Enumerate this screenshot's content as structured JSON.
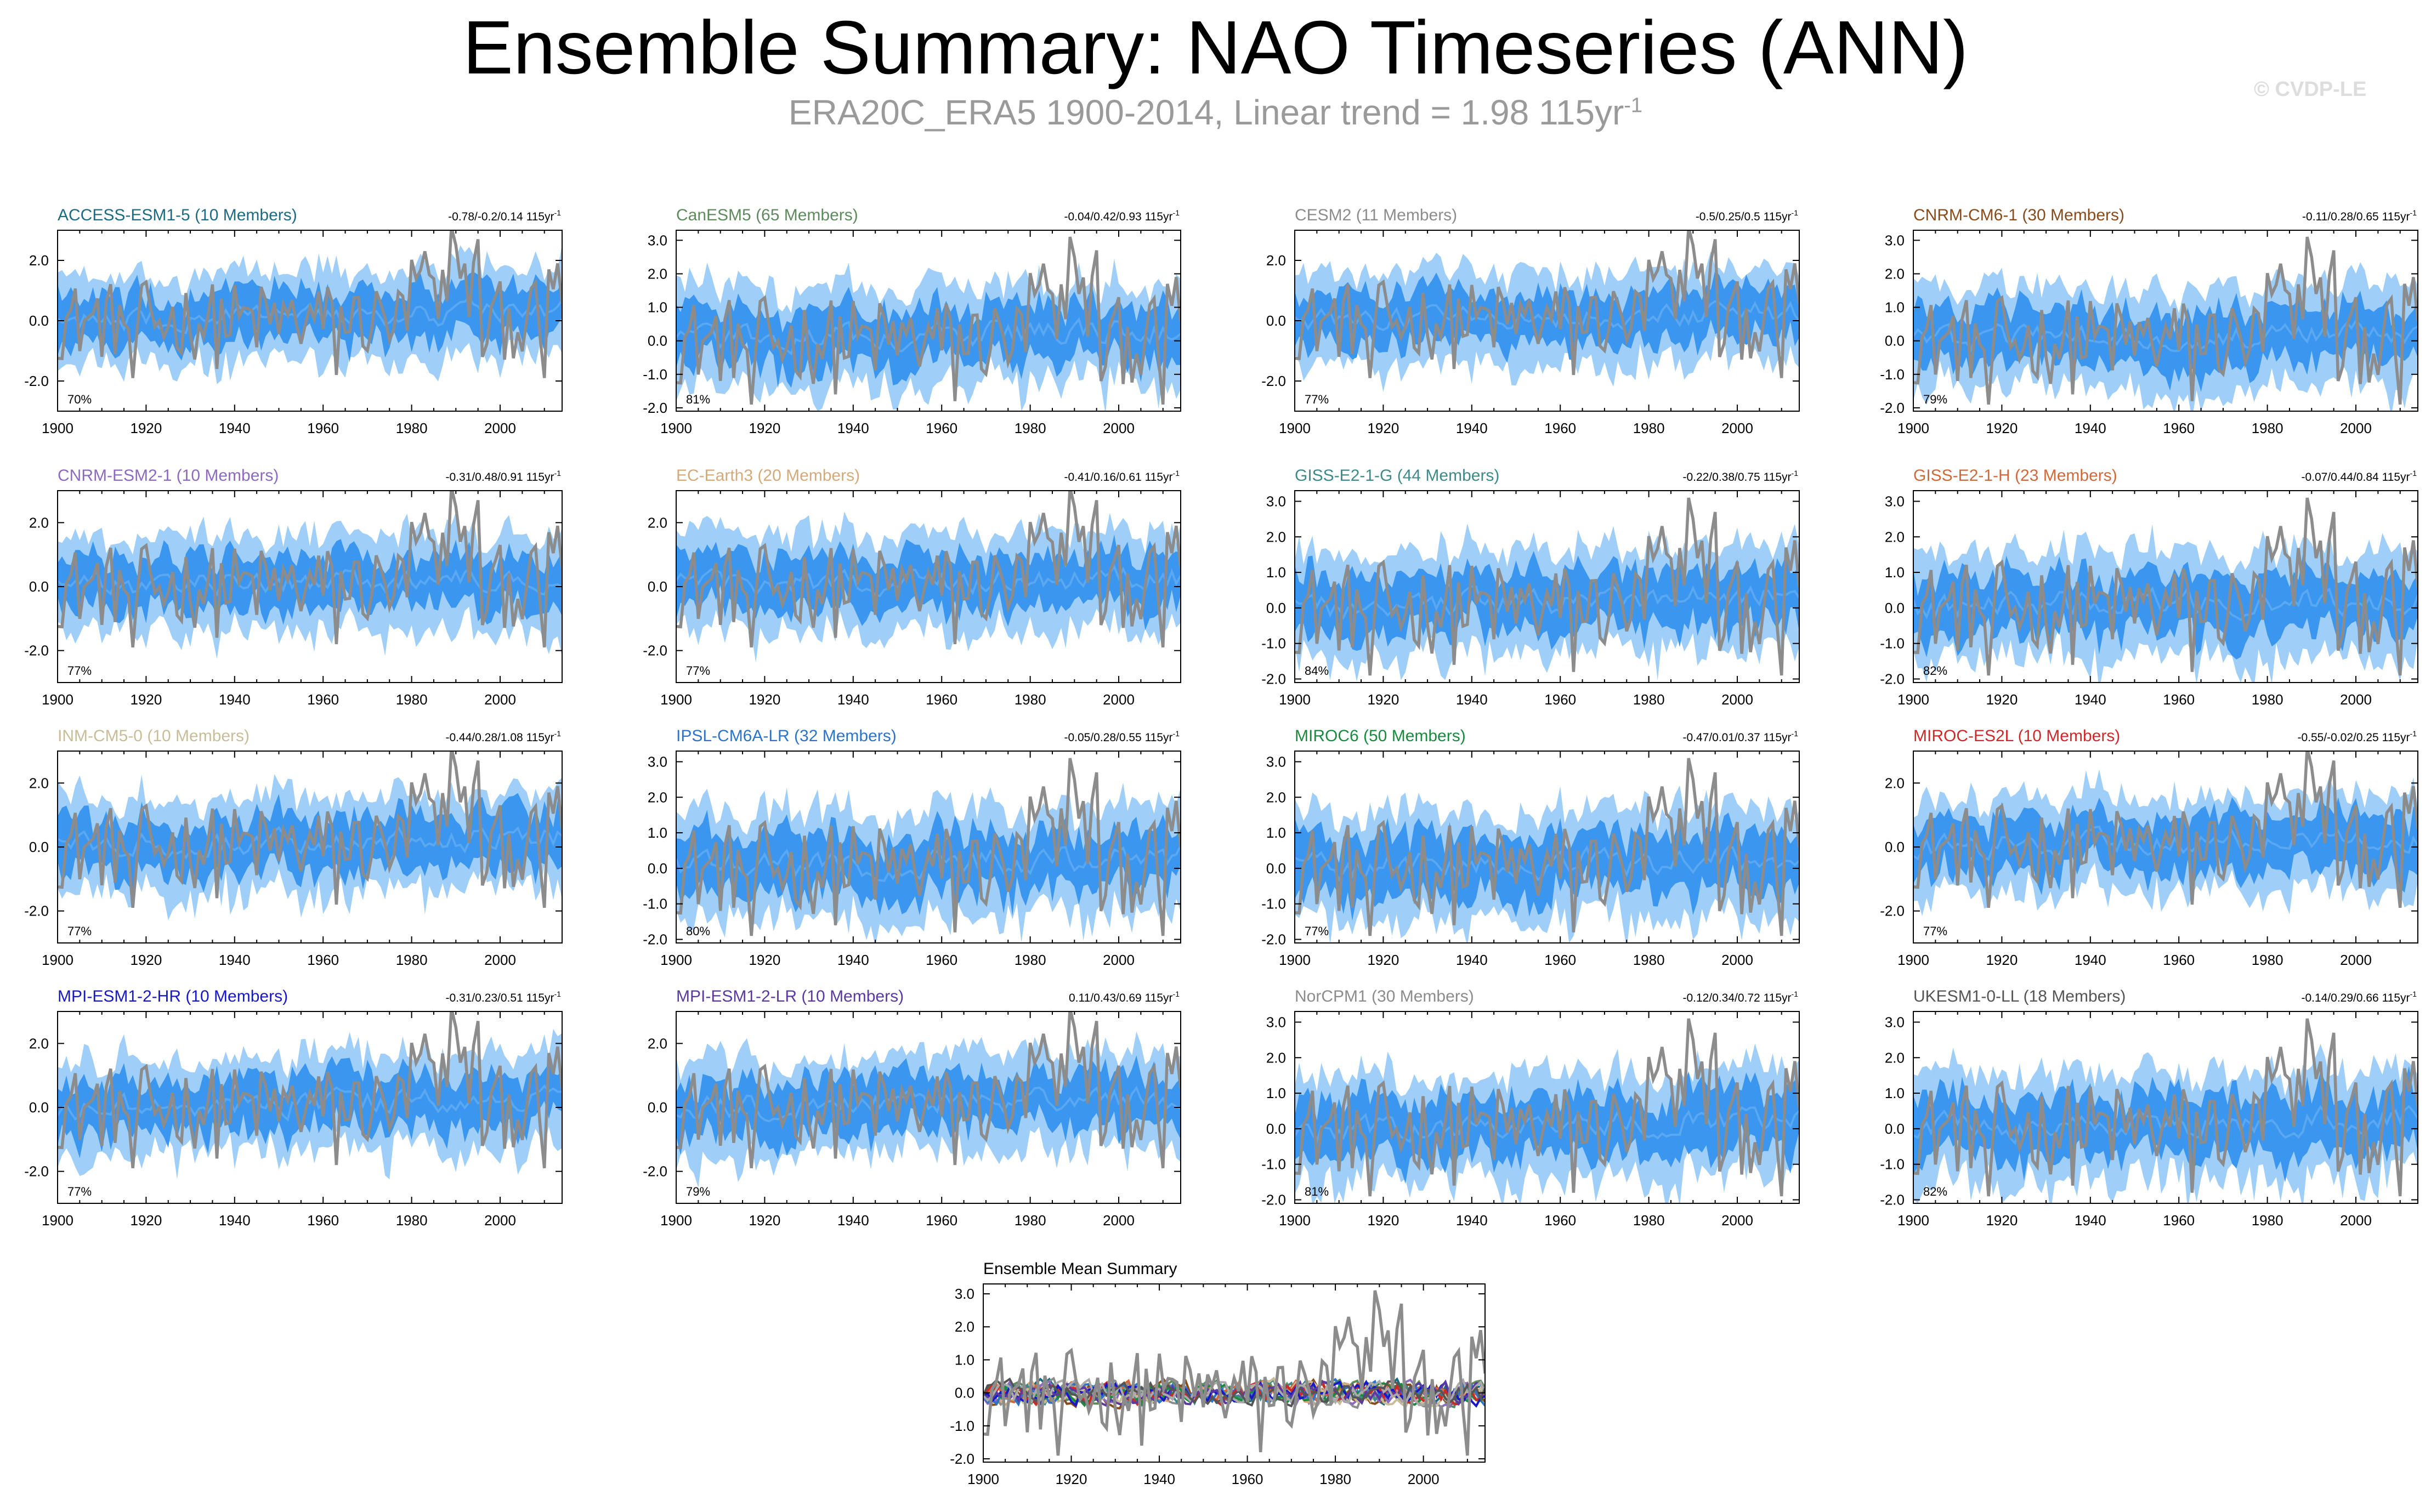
{
  "header": {
    "title": "Ensemble Summary: NAO Timeseries (ANN)",
    "subtitle_main": "ERA20C_ERA5 1900-2014, Linear trend = 1.98 115yr",
    "subtitle_sup": "-1",
    "copyright": "© CVDP-LE"
  },
  "colors": {
    "outer_band": "#9fcff8",
    "inner_band": "#3a96ee",
    "ensemble_mean": "#5aa8f2",
    "observations": "#8c8c8c"
  },
  "chart_data": [
    {
      "type": "area",
      "title": "ACCESS-ESM1-5 (10 Members)",
      "title_color": "#1c6b80",
      "trend_label": "-0.78/-0.2/0.14 115yr",
      "trend_sup": "-1",
      "pct_label": "70%",
      "x": [
        1900,
        2014
      ],
      "ylim": [
        -3,
        3
      ],
      "yticks": [
        2.0,
        0.0,
        -2.0
      ],
      "xticks": [
        1900,
        1920,
        1940,
        1960,
        1980,
        2000
      ],
      "grid": false
    },
    {
      "type": "area",
      "title": "CanESM5 (65 Members)",
      "title_color": "#5e8a5e",
      "trend_label": "-0.04/0.42/0.93 115yr",
      "trend_sup": "-1",
      "pct_label": "81%",
      "x": [
        1900,
        2014
      ],
      "ylim": [
        -2.1,
        3.3
      ],
      "yticks": [
        3.0,
        2.0,
        1.0,
        0.0,
        -1.0,
        -2.0
      ],
      "xticks": [
        1900,
        1920,
        1940,
        1960,
        1980,
        2000
      ],
      "grid": false
    },
    {
      "type": "area",
      "title": "CESM2 (11 Members)",
      "title_color": "#8c8c8c",
      "trend_label": "-0.5/0.25/0.5 115yr",
      "trend_sup": "-1",
      "pct_label": "77%",
      "x": [
        1900,
        2014
      ],
      "ylim": [
        -3,
        3
      ],
      "yticks": [
        2.0,
        0.0,
        -2.0
      ],
      "xticks": [
        1900,
        1920,
        1940,
        1960,
        1980,
        2000
      ],
      "grid": false
    },
    {
      "type": "area",
      "title": "CNRM-CM6-1 (30 Members)",
      "title_color": "#8a4b1a",
      "trend_label": "-0.11/0.28/0.65 115yr",
      "trend_sup": "-1",
      "pct_label": "79%",
      "x": [
        1900,
        2014
      ],
      "ylim": [
        -2.1,
        3.3
      ],
      "yticks": [
        3.0,
        2.0,
        1.0,
        0.0,
        -1.0,
        -2.0
      ],
      "xticks": [
        1900,
        1920,
        1940,
        1960,
        1980,
        2000
      ],
      "grid": false
    },
    {
      "type": "area",
      "title": "CNRM-ESM2-1 (10 Members)",
      "title_color": "#8c6ac0",
      "trend_label": "-0.31/0.48/0.91 115yr",
      "trend_sup": "-1",
      "pct_label": "77%",
      "x": [
        1900,
        2014
      ],
      "ylim": [
        -3,
        3
      ],
      "yticks": [
        2.0,
        0.0,
        -2.0
      ],
      "xticks": [
        1900,
        1920,
        1940,
        1960,
        1980,
        2000
      ],
      "grid": false
    },
    {
      "type": "area",
      "title": "EC-Earth3 (20 Members)",
      "title_color": "#d4aa7a",
      "trend_label": "-0.41/0.16/0.61 115yr",
      "trend_sup": "-1",
      "pct_label": "77%",
      "x": [
        1900,
        2014
      ],
      "ylim": [
        -3,
        3
      ],
      "yticks": [
        2.0,
        0.0,
        -2.0
      ],
      "xticks": [
        1900,
        1920,
        1940,
        1960,
        1980,
        2000
      ],
      "grid": false
    },
    {
      "type": "area",
      "title": "GISS-E2-1-G (44 Members)",
      "title_color": "#3e8a88",
      "trend_label": "-0.22/0.38/0.75 115yr",
      "trend_sup": "-1",
      "pct_label": "84%",
      "x": [
        1900,
        2014
      ],
      "ylim": [
        -2.1,
        3.3
      ],
      "yticks": [
        3.0,
        2.0,
        1.0,
        0.0,
        -1.0,
        -2.0
      ],
      "xticks": [
        1900,
        1920,
        1940,
        1960,
        1980,
        2000
      ],
      "grid": false
    },
    {
      "type": "area",
      "title": "GISS-E2-1-H (23 Members)",
      "title_color": "#d0693a",
      "trend_label": "-0.07/0.44/0.84 115yr",
      "trend_sup": "-1",
      "pct_label": "82%",
      "x": [
        1900,
        2014
      ],
      "ylim": [
        -2.1,
        3.3
      ],
      "yticks": [
        3.0,
        2.0,
        1.0,
        0.0,
        -1.0,
        -2.0
      ],
      "xticks": [
        1900,
        1920,
        1940,
        1960,
        1980,
        2000
      ],
      "grid": false
    },
    {
      "type": "area",
      "title": "INM-CM5-0 (10 Members)",
      "title_color": "#c8bd98",
      "trend_label": "-0.44/0.28/1.08 115yr",
      "trend_sup": "-1",
      "pct_label": "77%",
      "x": [
        1900,
        2014
      ],
      "ylim": [
        -3,
        3
      ],
      "yticks": [
        2.0,
        0.0,
        -2.0
      ],
      "xticks": [
        1900,
        1920,
        1940,
        1960,
        1980,
        2000
      ],
      "grid": false
    },
    {
      "type": "area",
      "title": "IPSL-CM6A-LR (32 Members)",
      "title_color": "#2c74c8",
      "trend_label": "-0.05/0.28/0.55 115yr",
      "trend_sup": "-1",
      "pct_label": "80%",
      "x": [
        1900,
        2014
      ],
      "ylim": [
        -2.1,
        3.3
      ],
      "yticks": [
        3.0,
        2.0,
        1.0,
        0.0,
        -1.0,
        -2.0
      ],
      "xticks": [
        1900,
        1920,
        1940,
        1960,
        1980,
        2000
      ],
      "grid": false
    },
    {
      "type": "area",
      "title": "MIROC6 (50 Members)",
      "title_color": "#1a8a3e",
      "trend_label": "-0.47/0.01/0.37 115yr",
      "trend_sup": "-1",
      "pct_label": "77%",
      "x": [
        1900,
        2014
      ],
      "ylim": [
        -2.1,
        3.3
      ],
      "yticks": [
        3.0,
        2.0,
        1.0,
        0.0,
        -1.0,
        -2.0
      ],
      "xticks": [
        1900,
        1920,
        1940,
        1960,
        1980,
        2000
      ],
      "grid": false
    },
    {
      "type": "area",
      "title": "MIROC-ES2L (10 Members)",
      "title_color": "#d02828",
      "trend_label": "-0.55/-0.02/0.25 115yr",
      "trend_sup": "-1",
      "pct_label": "77%",
      "x": [
        1900,
        2014
      ],
      "ylim": [
        -3,
        3
      ],
      "yticks": [
        2.0,
        0.0,
        -2.0
      ],
      "xticks": [
        1900,
        1920,
        1940,
        1960,
        1980,
        2000
      ],
      "grid": false
    },
    {
      "type": "area",
      "title": "MPI-ESM1-2-HR (10 Members)",
      "title_color": "#1818c8",
      "trend_label": "-0.31/0.23/0.51 115yr",
      "trend_sup": "-1",
      "pct_label": "77%",
      "x": [
        1900,
        2014
      ],
      "ylim": [
        -3,
        3
      ],
      "yticks": [
        2.0,
        0.0,
        -2.0
      ],
      "xticks": [
        1900,
        1920,
        1940,
        1960,
        1980,
        2000
      ],
      "grid": false
    },
    {
      "type": "area",
      "title": "MPI-ESM1-2-LR (10 Members)",
      "title_color": "#5a3aa0",
      "trend_label": "0.11/0.43/0.69 115yr",
      "trend_sup": "-1",
      "pct_label": "79%",
      "x": [
        1900,
        2014
      ],
      "ylim": [
        -3,
        3
      ],
      "yticks": [
        2.0,
        0.0,
        -2.0
      ],
      "xticks": [
        1900,
        1920,
        1940,
        1960,
        1980,
        2000
      ],
      "grid": false
    },
    {
      "type": "area",
      "title": "NorCPM1 (30 Members)",
      "title_color": "#8c8c8c",
      "trend_label": "-0.12/0.34/0.72 115yr",
      "trend_sup": "-1",
      "pct_label": "81%",
      "x": [
        1900,
        2014
      ],
      "ylim": [
        -2.1,
        3.3
      ],
      "yticks": [
        3.0,
        2.0,
        1.0,
        0.0,
        -1.0,
        -2.0
      ],
      "xticks": [
        1900,
        1920,
        1940,
        1960,
        1980,
        2000
      ],
      "grid": false
    },
    {
      "type": "area",
      "title": "UKESM1-0-LL (18 Members)",
      "title_color": "#555555",
      "trend_label": "-0.14/0.29/0.66 115yr",
      "trend_sup": "-1",
      "pct_label": "82%",
      "x": [
        1900,
        2014
      ],
      "ylim": [
        -2.1,
        3.3
      ],
      "yticks": [
        3.0,
        2.0,
        1.0,
        0.0,
        -1.0,
        -2.0
      ],
      "xticks": [
        1900,
        1920,
        1940,
        1960,
        1980,
        2000
      ],
      "grid": false
    },
    {
      "type": "line",
      "title": "Ensemble Mean Summary",
      "title_color": "#000000",
      "x": [
        1900,
        2014
      ],
      "ylim": [
        -2.1,
        3.3
      ],
      "yticks": [
        3.0,
        2.0,
        1.0,
        0.0,
        -1.0,
        -2.0
      ],
      "xticks": [
        1900,
        1920,
        1940,
        1960,
        1980,
        2000
      ],
      "grid": false,
      "series_colors": [
        "#1c6b80",
        "#5e8a5e",
        "#8c8c8c",
        "#8a4b1a",
        "#8c6ac0",
        "#d4aa7a",
        "#3e8a88",
        "#d0693a",
        "#c8bd98",
        "#2c74c8",
        "#1a8a3e",
        "#d02828",
        "#1818c8",
        "#5a3aa0",
        "#aaaaaa",
        "#555555"
      ]
    }
  ]
}
